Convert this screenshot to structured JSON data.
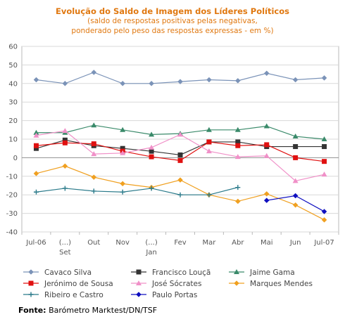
{
  "chart_data": {
    "type": "line",
    "title": "Evolução do Saldo  de Imagem dos Líderes Políticos",
    "subtitle_line1": "(saldo de respostas positivas pelas negativas,",
    "subtitle_line2": "ponderado pelo peso das respostas expressas - em %)",
    "xlabel": "",
    "ylabel": "",
    "ylim": [
      -40,
      60
    ],
    "yticks": [
      "60",
      "50",
      "40",
      "30",
      "20",
      "10",
      "0",
      "-10",
      "-20",
      "-30",
      "-40"
    ],
    "categories": [
      {
        "line1": "Jul-06",
        "line2": ""
      },
      {
        "line1": "(...)",
        "line2": "Set"
      },
      {
        "line1": "Out",
        "line2": ""
      },
      {
        "line1": "Nov",
        "line2": ""
      },
      {
        "line1": "(...)",
        "line2": "Jan"
      },
      {
        "line1": "Fev",
        "line2": ""
      },
      {
        "line1": "Mar",
        "line2": ""
      },
      {
        "line1": "Abr",
        "line2": ""
      },
      {
        "line1": "Mai",
        "line2": ""
      },
      {
        "line1": "Jun",
        "line2": ""
      },
      {
        "line1": "Jul-07",
        "line2": ""
      }
    ],
    "grid": "horizontal",
    "legend": "bottom",
    "series": [
      {
        "name": "Cavaco Silva",
        "color": "#7b93b8",
        "marker": "diamond",
        "values": [
          42,
          40,
          46,
          40,
          40,
          41,
          42,
          41.5,
          45.5,
          42,
          43
        ]
      },
      {
        "name": "Francisco Louçã",
        "color": "#333333",
        "marker": "square",
        "values": [
          5,
          9.5,
          6.5,
          5,
          3.5,
          1.5,
          8.5,
          8.5,
          6,
          6,
          6
        ]
      },
      {
        "name": "Jaime Gama",
        "color": "#3a8a6a",
        "marker": "triangle",
        "values": [
          13.5,
          13.5,
          17.5,
          15,
          12.5,
          13,
          15,
          15,
          17,
          11.5,
          10
        ]
      },
      {
        "name": "Jerónimo de Sousa",
        "color": "#e01010",
        "marker": "square",
        "values": [
          6.5,
          8,
          7.5,
          3.5,
          0.5,
          -1.5,
          8.5,
          6.5,
          7,
          0,
          -2
        ]
      },
      {
        "name": "José Sócrates",
        "color": "#f090c8",
        "marker": "triangle",
        "values": [
          12,
          14.5,
          2,
          2.5,
          5.5,
          12.5,
          3.5,
          0.5,
          1,
          -12.5,
          -9
        ]
      },
      {
        "name": "Marques Mendes",
        "color": "#f0a020",
        "marker": "diamond",
        "values": [
          -8.5,
          -4.5,
          -10.5,
          -14,
          -16,
          -12,
          -20,
          -23.5,
          -19.5,
          -25.5,
          -33.5
        ]
      },
      {
        "name": "Ribeiro e Castro",
        "color": "#2a7a8a",
        "marker": "plus",
        "values": [
          -18.5,
          -16.5,
          -18,
          -18.5,
          -16.5,
          -20,
          -20,
          -16,
          null,
          null,
          null
        ]
      },
      {
        "name": "Paulo Portas",
        "color": "#1010c0",
        "marker": "diamond",
        "values": [
          null,
          null,
          null,
          null,
          null,
          null,
          null,
          null,
          -23,
          -20.5,
          -29
        ]
      }
    ]
  },
  "source": {
    "label": "Fonte:",
    "text": " Barómetro Marktest/DN/TSF"
  }
}
